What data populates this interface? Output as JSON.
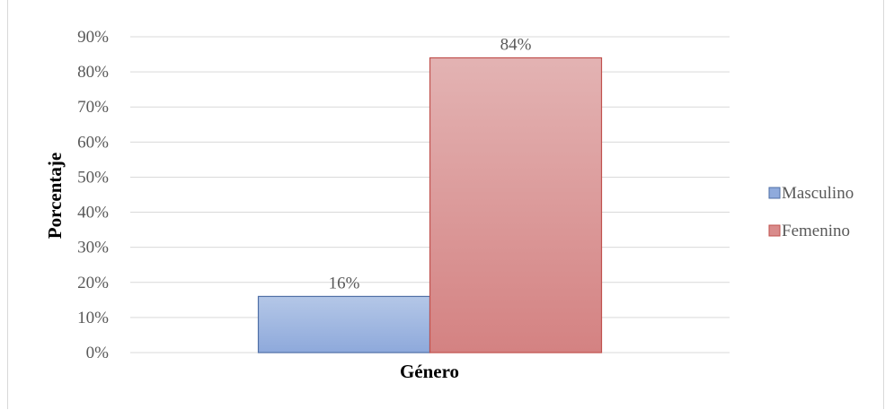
{
  "chart_data": {
    "type": "bar",
    "categories": [
      "Género"
    ],
    "series": [
      {
        "name": "Masculino",
        "values": [
          16
        ],
        "label": "16%",
        "color": "#8faadc",
        "stroke": "#4f6fa6"
      },
      {
        "name": "Femenino",
        "values": [
          84
        ],
        "label": "84%",
        "color": "#d98b8b",
        "stroke": "#c0504d"
      }
    ],
    "yticks": [
      "0%",
      "10%",
      "20%",
      "30%",
      "40%",
      "50%",
      "60%",
      "70%",
      "80%",
      "90%"
    ],
    "ylim": [
      0,
      90
    ],
    "xlabel": "Género",
    "ylabel": "Porcentaje",
    "grid": true,
    "legend_position": "right"
  }
}
